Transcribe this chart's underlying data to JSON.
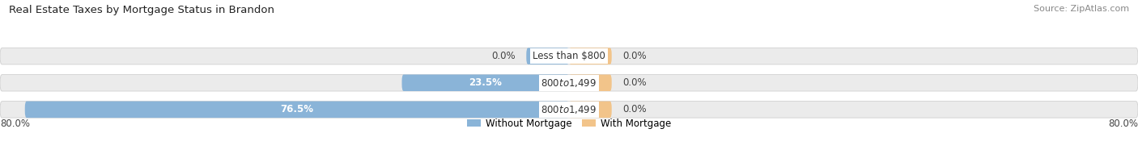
{
  "title": "Real Estate Taxes by Mortgage Status in Brandon",
  "source": "Source: ZipAtlas.com",
  "bars": [
    {
      "label": "Less than $800",
      "without_mortgage": 0.0,
      "with_mortgage": 0.0,
      "left_label": "0.0%",
      "right_label": "0.0%"
    },
    {
      "label": "$800 to $1,499",
      "without_mortgage": 23.5,
      "with_mortgage": 0.0,
      "left_label": "23.5%",
      "right_label": "0.0%"
    },
    {
      "label": "$800 to $1,499",
      "without_mortgage": 76.5,
      "with_mortgage": 0.0,
      "left_label": "76.5%",
      "right_label": "0.0%"
    }
  ],
  "x_axis_left_label": "80.0%",
  "x_axis_right_label": "80.0%",
  "max_val": 80.0,
  "color_without": "#8ab4d8",
  "color_with": "#f2c48a",
  "bg_bar": "#ebebeb",
  "bg_figure": "#ffffff",
  "bar_height": 0.62,
  "label_box_color": "#ffffff",
  "label_fontsize": 8.5,
  "stub_size": 6.0
}
